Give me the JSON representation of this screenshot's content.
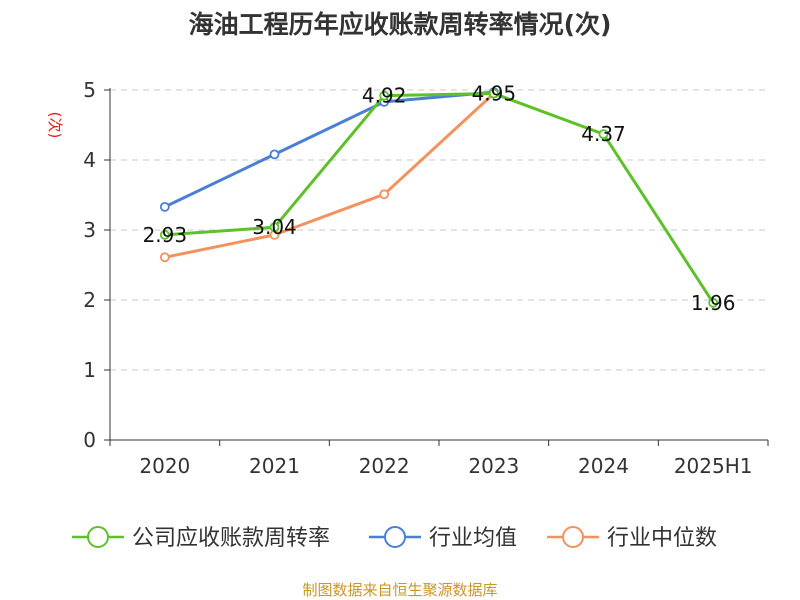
{
  "chart_data": {
    "type": "line",
    "title": "海油工程历年应收账款周转率情况(次)",
    "ylabel": "(次)",
    "xlabel": "",
    "categories": [
      "2020",
      "2021",
      "2022",
      "2023",
      "2024",
      "2025H1"
    ],
    "ylim": [
      0,
      5
    ],
    "yticks": [
      "0",
      "1",
      "2",
      "3",
      "4",
      "5"
    ],
    "grid": true,
    "legend_position": "bottom",
    "series": [
      {
        "name": "公司应收账款周转率",
        "color": "#5ec02a",
        "values": [
          2.93,
          3.04,
          4.92,
          4.95,
          4.37,
          1.96
        ],
        "labels": [
          "2.93",
          "3.04",
          "4.92",
          "4.95",
          "4.37",
          "1.96"
        ]
      },
      {
        "name": "行业均值",
        "color": "#4a7fd4",
        "values": [
          3.33,
          4.08,
          4.83,
          4.97,
          null,
          null
        ]
      },
      {
        "name": "行业中位数",
        "color": "#f4925d",
        "values": [
          2.61,
          2.93,
          3.51,
          4.95,
          null,
          null
        ]
      }
    ],
    "source": "制图数据来自恒生聚源数据库"
  }
}
